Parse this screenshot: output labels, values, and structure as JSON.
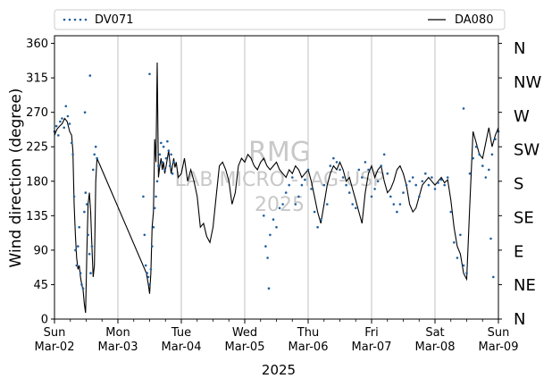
{
  "chart_data": {
    "type": "line+scatter",
    "xlabel": "2025",
    "ylabel": "Wind direction (degree)",
    "ylim": [
      0,
      370
    ],
    "xlim": [
      0,
      7
    ],
    "yticks": [
      0,
      45,
      90,
      135,
      180,
      225,
      270,
      315,
      360
    ],
    "x_ticks": [
      {
        "x": 0,
        "line1": "Sun",
        "line2": "Mar-02"
      },
      {
        "x": 1,
        "line1": "Mon",
        "line2": "Mar-03"
      },
      {
        "x": 2,
        "line1": "Tue",
        "line2": "Mar-04"
      },
      {
        "x": 3,
        "line1": "Wed",
        "line2": "Mar-05"
      },
      {
        "x": 4,
        "line1": "Thu",
        "line2": "Mar-06"
      },
      {
        "x": 5,
        "line1": "Fri",
        "line2": "Mar-07"
      },
      {
        "x": 6,
        "line1": "Sat",
        "line2": "Mar-08"
      },
      {
        "x": 7,
        "line1": "Sun",
        "line2": "Mar-09"
      }
    ],
    "right_axis_labels": [
      "N",
      "NE",
      "E",
      "SE",
      "S",
      "SW",
      "W",
      "NW",
      "N"
    ],
    "grid": "vertical",
    "legend_position": "top",
    "series": [
      {
        "name": "DV071",
        "style": "dots",
        "color": "#1f5fa0",
        "points": [
          [
            0.0,
            245
          ],
          [
            0.03,
            252
          ],
          [
            0.06,
            240
          ],
          [
            0.09,
            258
          ],
          [
            0.12,
            262
          ],
          [
            0.15,
            250
          ],
          [
            0.18,
            278
          ],
          [
            0.21,
            265
          ],
          [
            0.24,
            255
          ],
          [
            0.27,
            230
          ],
          [
            0.29,
            215
          ],
          [
            0.31,
            160
          ],
          [
            0.33,
            90
          ],
          [
            0.35,
            70
          ],
          [
            0.37,
            95
          ],
          [
            0.39,
            120
          ],
          [
            0.41,
            60
          ],
          [
            0.43,
            45
          ],
          [
            0.45,
            40
          ],
          [
            0.47,
            140
          ],
          [
            0.49,
            165
          ],
          [
            0.51,
            150
          ],
          [
            0.53,
            110
          ],
          [
            0.55,
            85
          ],
          [
            0.57,
            60
          ],
          [
            0.59,
            95
          ],
          [
            0.61,
            195
          ],
          [
            0.63,
            215
          ],
          [
            0.65,
            225
          ],
          [
            0.67,
            210
          ],
          [
            0.56,
            318
          ],
          [
            0.48,
            270
          ],
          [
            1.4,
            160
          ],
          [
            1.42,
            110
          ],
          [
            1.44,
            70
          ],
          [
            1.46,
            60
          ],
          [
            1.48,
            55
          ],
          [
            1.5,
            45
          ],
          [
            1.52,
            65
          ],
          [
            1.54,
            95
          ],
          [
            1.56,
            120
          ],
          [
            1.58,
            145
          ],
          [
            1.6,
            160
          ],
          [
            1.62,
            180
          ],
          [
            1.64,
            200
          ],
          [
            1.66,
            215
          ],
          [
            1.68,
            230
          ],
          [
            1.7,
            205
          ],
          [
            1.72,
            225
          ],
          [
            1.74,
            195
          ],
          [
            1.76,
            210
          ],
          [
            1.78,
            232
          ],
          [
            1.8,
            220
          ],
          [
            1.82,
            200
          ],
          [
            1.84,
            215
          ],
          [
            1.86,
            190
          ],
          [
            1.88,
            205
          ],
          [
            1.5,
            320
          ],
          [
            3.3,
            135
          ],
          [
            3.33,
            95
          ],
          [
            3.36,
            80
          ],
          [
            3.38,
            40
          ],
          [
            3.4,
            110
          ],
          [
            3.45,
            130
          ],
          [
            3.5,
            120
          ],
          [
            3.55,
            145
          ],
          [
            3.6,
            150
          ],
          [
            3.65,
            165
          ],
          [
            3.7,
            175
          ],
          [
            3.75,
            185
          ],
          [
            3.8,
            150
          ],
          [
            3.85,
            160
          ],
          [
            3.9,
            175
          ],
          [
            3.95,
            182
          ],
          [
            4.0,
            195
          ],
          [
            4.05,
            170
          ],
          [
            4.1,
            140
          ],
          [
            4.15,
            120
          ],
          [
            4.2,
            130
          ],
          [
            4.25,
            175
          ],
          [
            4.3,
            150
          ],
          [
            4.35,
            200
          ],
          [
            4.4,
            210
          ],
          [
            4.45,
            205
          ],
          [
            4.5,
            195
          ],
          [
            4.55,
            185
          ],
          [
            4.6,
            175
          ],
          [
            4.65,
            165
          ],
          [
            4.7,
            150
          ],
          [
            4.75,
            145
          ],
          [
            4.8,
            195
          ],
          [
            4.85,
            185
          ],
          [
            4.9,
            205
          ],
          [
            4.95,
            195
          ],
          [
            5.0,
            160
          ],
          [
            5.05,
            170
          ],
          [
            5.1,
            180
          ],
          [
            5.15,
            200
          ],
          [
            5.2,
            215
          ],
          [
            5.25,
            190
          ],
          [
            5.3,
            160
          ],
          [
            5.35,
            150
          ],
          [
            5.4,
            140
          ],
          [
            5.45,
            150
          ],
          [
            5.5,
            165
          ],
          [
            5.55,
            175
          ],
          [
            5.6,
            180
          ],
          [
            5.65,
            185
          ],
          [
            5.7,
            175
          ],
          [
            5.75,
            160
          ],
          [
            5.8,
            180
          ],
          [
            5.85,
            190
          ],
          [
            5.9,
            175
          ],
          [
            5.95,
            185
          ],
          [
            6.0,
            170
          ],
          [
            6.05,
            178
          ],
          [
            6.1,
            182
          ],
          [
            6.15,
            175
          ],
          [
            6.2,
            185
          ],
          [
            6.25,
            140
          ],
          [
            6.3,
            100
          ],
          [
            6.35,
            80
          ],
          [
            6.4,
            110
          ],
          [
            6.45,
            70
          ],
          [
            6.5,
            60
          ],
          [
            6.55,
            190
          ],
          [
            6.6,
            210
          ],
          [
            6.65,
            225
          ],
          [
            6.7,
            215
          ],
          [
            6.75,
            200
          ],
          [
            6.8,
            185
          ],
          [
            6.85,
            195
          ],
          [
            6.9,
            215
          ],
          [
            6.95,
            235
          ],
          [
            7.0,
            245
          ],
          [
            6.45,
            275
          ],
          [
            6.88,
            105
          ],
          [
            6.92,
            55
          ]
        ]
      },
      {
        "name": "DA080",
        "style": "line",
        "color": "#000000",
        "points": [
          [
            0.0,
            240
          ],
          [
            0.04,
            248
          ],
          [
            0.08,
            252
          ],
          [
            0.12,
            255
          ],
          [
            0.16,
            262
          ],
          [
            0.2,
            258
          ],
          [
            0.24,
            245
          ],
          [
            0.27,
            240
          ],
          [
            0.29,
            220
          ],
          [
            0.31,
            150
          ],
          [
            0.33,
            110
          ],
          [
            0.35,
            80
          ],
          [
            0.37,
            65
          ],
          [
            0.39,
            70
          ],
          [
            0.41,
            55
          ],
          [
            0.43,
            45
          ],
          [
            0.45,
            38
          ],
          [
            0.47,
            20
          ],
          [
            0.49,
            8
          ],
          [
            0.51,
            85
          ],
          [
            0.53,
            150
          ],
          [
            0.55,
            165
          ],
          [
            0.57,
            140
          ],
          [
            0.59,
            95
          ],
          [
            0.61,
            55
          ],
          [
            0.63,
            70
          ],
          [
            0.65,
            180
          ],
          [
            0.67,
            210
          ],
          [
            1.45,
            60
          ],
          [
            1.48,
            45
          ],
          [
            1.5,
            33
          ],
          [
            1.52,
            60
          ],
          [
            1.54,
            120
          ],
          [
            1.56,
            140
          ],
          [
            1.58,
            235
          ],
          [
            1.6,
            205
          ],
          [
            1.62,
            335
          ],
          [
            1.64,
            185
          ],
          [
            1.66,
            200
          ],
          [
            1.68,
            210
          ],
          [
            1.7,
            195
          ],
          [
            1.72,
            205
          ],
          [
            1.74,
            190
          ],
          [
            1.76,
            200
          ],
          [
            1.78,
            210
          ],
          [
            1.8,
            220
          ],
          [
            1.82,
            205
          ],
          [
            1.84,
            190
          ],
          [
            1.86,
            200
          ],
          [
            1.88,
            210
          ],
          [
            1.9,
            198
          ],
          [
            1.92,
            205
          ],
          [
            1.95,
            185
          ],
          [
            2.0,
            190
          ],
          [
            2.05,
            210
          ],
          [
            2.1,
            180
          ],
          [
            2.15,
            195
          ],
          [
            2.2,
            180
          ],
          [
            2.25,
            160
          ],
          [
            2.3,
            120
          ],
          [
            2.35,
            125
          ],
          [
            2.4,
            108
          ],
          [
            2.45,
            100
          ],
          [
            2.5,
            120
          ],
          [
            2.55,
            160
          ],
          [
            2.6,
            200
          ],
          [
            2.65,
            205
          ],
          [
            2.7,
            195
          ],
          [
            2.75,
            180
          ],
          [
            2.8,
            150
          ],
          [
            2.85,
            165
          ],
          [
            2.9,
            200
          ],
          [
            2.95,
            210
          ],
          [
            3.0,
            205
          ],
          [
            3.05,
            215
          ],
          [
            3.1,
            210
          ],
          [
            3.15,
            200
          ],
          [
            3.2,
            195
          ],
          [
            3.25,
            205
          ],
          [
            3.3,
            210
          ],
          [
            3.35,
            200
          ],
          [
            3.4,
            195
          ],
          [
            3.45,
            200
          ],
          [
            3.5,
            205
          ],
          [
            3.55,
            195
          ],
          [
            3.6,
            190
          ],
          [
            3.65,
            185
          ],
          [
            3.7,
            195
          ],
          [
            3.75,
            190
          ],
          [
            3.8,
            200
          ],
          [
            3.85,
            195
          ],
          [
            3.9,
            185
          ],
          [
            3.95,
            190
          ],
          [
            4.0,
            195
          ],
          [
            4.05,
            180
          ],
          [
            4.1,
            160
          ],
          [
            4.15,
            140
          ],
          [
            4.2,
            125
          ],
          [
            4.25,
            150
          ],
          [
            4.3,
            175
          ],
          [
            4.35,
            190
          ],
          [
            4.4,
            200
          ],
          [
            4.45,
            195
          ],
          [
            4.5,
            205
          ],
          [
            4.55,
            195
          ],
          [
            4.6,
            180
          ],
          [
            4.65,
            185
          ],
          [
            4.7,
            170
          ],
          [
            4.75,
            155
          ],
          [
            4.8,
            140
          ],
          [
            4.85,
            125
          ],
          [
            4.9,
            165
          ],
          [
            4.95,
            190
          ],
          [
            5.0,
            200
          ],
          [
            5.05,
            185
          ],
          [
            5.1,
            195
          ],
          [
            5.15,
            200
          ],
          [
            5.2,
            180
          ],
          [
            5.25,
            165
          ],
          [
            5.3,
            170
          ],
          [
            5.35,
            180
          ],
          [
            5.4,
            195
          ],
          [
            5.45,
            200
          ],
          [
            5.5,
            190
          ],
          [
            5.55,
            175
          ],
          [
            5.6,
            150
          ],
          [
            5.65,
            140
          ],
          [
            5.7,
            145
          ],
          [
            5.75,
            160
          ],
          [
            5.8,
            175
          ],
          [
            5.85,
            180
          ],
          [
            5.9,
            185
          ],
          [
            5.95,
            180
          ],
          [
            6.0,
            175
          ],
          [
            6.05,
            180
          ],
          [
            6.1,
            185
          ],
          [
            6.15,
            178
          ],
          [
            6.2,
            182
          ],
          [
            6.25,
            155
          ],
          [
            6.3,
            120
          ],
          [
            6.35,
            95
          ],
          [
            6.4,
            85
          ],
          [
            6.45,
            60
          ],
          [
            6.48,
            55
          ],
          [
            6.5,
            52
          ],
          [
            6.55,
            150
          ],
          [
            6.6,
            245
          ],
          [
            6.65,
            230
          ],
          [
            6.7,
            215
          ],
          [
            6.75,
            210
          ],
          [
            6.8,
            230
          ],
          [
            6.85,
            250
          ],
          [
            6.9,
            225
          ],
          [
            6.95,
            240
          ],
          [
            7.0,
            250
          ]
        ]
      }
    ]
  },
  "watermark": {
    "line1": "RMG",
    "line2": "LAB MICRO - IAG-USP",
    "line3": "2025"
  }
}
